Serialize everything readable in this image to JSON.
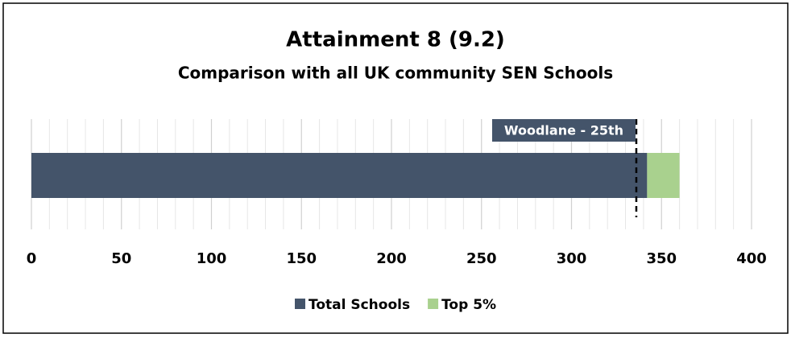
{
  "chart_data": {
    "type": "bar",
    "orientation": "horizontal",
    "stacked": true,
    "title": "Attainment 8 (9.2)",
    "subtitle": "Comparison with all UK community SEN Schools",
    "series": [
      {
        "name": "Total Schools",
        "color": "#44546a",
        "values": [
          342
        ]
      },
      {
        "name": "Top 5%",
        "color": "#a9d18e",
        "values": [
          18
        ]
      }
    ],
    "xlim": [
      0,
      400
    ],
    "xticks": [
      0,
      50,
      100,
      150,
      200,
      250,
      300,
      350,
      400
    ],
    "grid": true,
    "legend": "bottom",
    "annotation": {
      "text": "Woodlane - 25th",
      "value": 336,
      "color": "#44546a"
    }
  }
}
